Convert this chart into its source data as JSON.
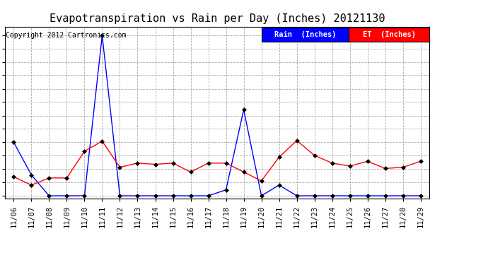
{
  "title": "Evapotranspiration vs Rain per Day (Inches) 20121130",
  "copyright": "Copyright 2012 Cartronics.com",
  "x_labels": [
    "11/06",
    "11/07",
    "11/08",
    "11/09",
    "11/10",
    "11/11",
    "11/12",
    "11/13",
    "11/14",
    "11/15",
    "11/16",
    "11/17",
    "11/18",
    "11/19",
    "11/20",
    "11/21",
    "11/22",
    "11/23",
    "11/24",
    "11/25",
    "11/26",
    "11/27",
    "11/28",
    "11/29"
  ],
  "rain_values": [
    0.09,
    0.035,
    0.0,
    0.0,
    0.0,
    0.27,
    0.0,
    0.0,
    0.0,
    0.0,
    0.0,
    0.0,
    0.01,
    0.145,
    0.0,
    0.018,
    0.0,
    0.0,
    0.0,
    0.0,
    0.0,
    0.0,
    0.0,
    0.0
  ],
  "et_values": [
    0.032,
    0.018,
    0.03,
    0.03,
    0.075,
    0.092,
    0.048,
    0.055,
    0.053,
    0.055,
    0.04,
    0.055,
    0.055,
    0.04,
    0.025,
    0.065,
    0.093,
    0.068,
    0.055,
    0.05,
    0.058,
    0.046,
    0.048,
    0.058
  ],
  "rain_color": "#0000ff",
  "et_color": "#ff0000",
  "background_color": "#ffffff",
  "grid_color": "#aaaaaa",
  "yticks": [
    0.0,
    0.023,
    0.045,
    0.068,
    0.09,
    0.113,
    0.135,
    0.158,
    0.18,
    0.203,
    0.225,
    0.248,
    0.27
  ],
  "ylim": [
    -0.005,
    0.285
  ],
  "legend_rain_label": "Rain  (Inches)",
  "legend_et_label": "ET  (Inches)",
  "legend_rain_bg": "#0000ff",
  "legend_et_bg": "#ff0000",
  "title_fontsize": 11,
  "tick_fontsize": 7.5,
  "copyright_fontsize": 7,
  "legend_fontsize": 7.5
}
